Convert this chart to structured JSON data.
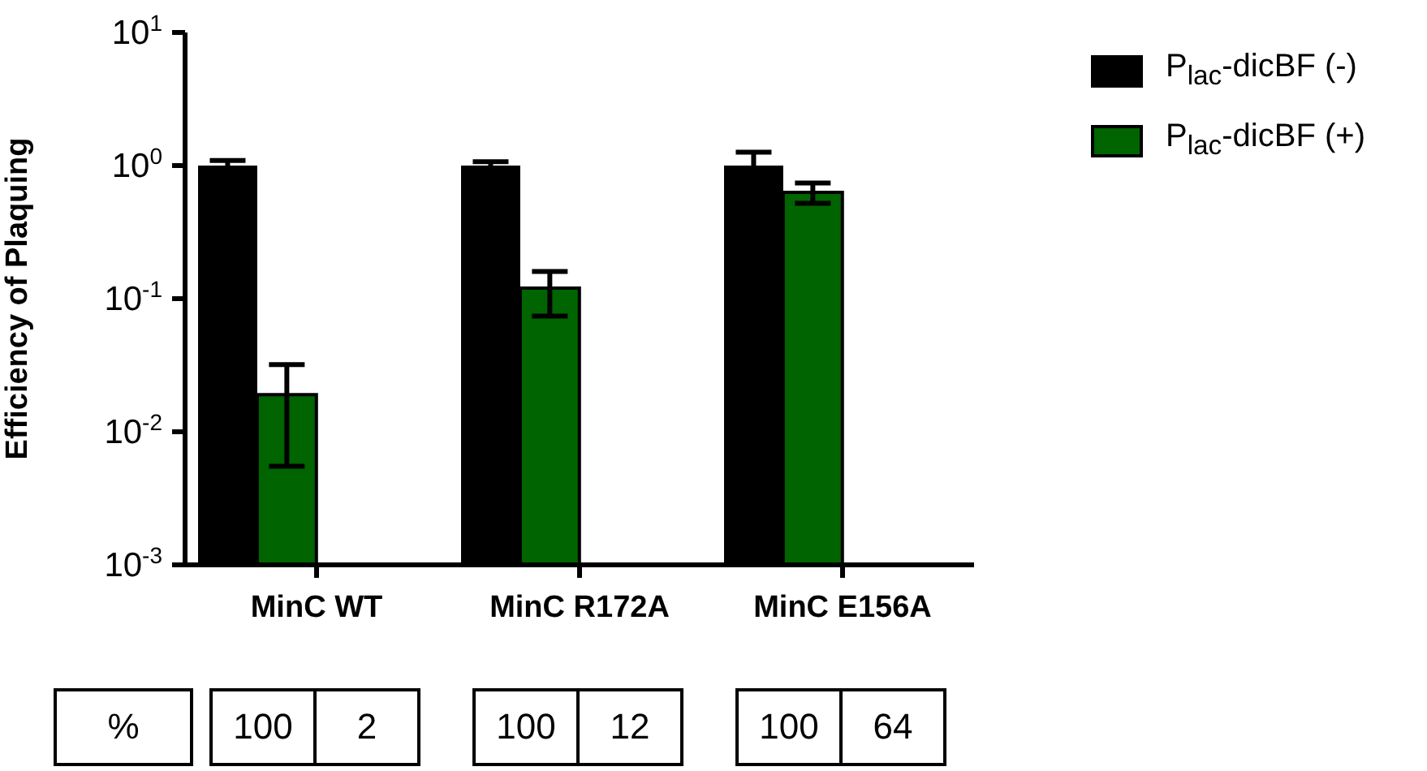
{
  "chart_data": {
    "type": "bar",
    "ylabel": "Efficiency of Plaquing",
    "categories": [
      "MinC WT",
      "MinC R172A",
      "MinC E156A"
    ],
    "series": [
      {
        "name": "P$_{lac}$-dicBF (-)",
        "color": "#000000",
        "values": [
          1,
          1,
          1
        ],
        "errors": [
          [
            1,
            1.09
          ],
          [
            1,
            1.07
          ],
          [
            1,
            1.26
          ]
        ]
      },
      {
        "name": "P$_{lac}$-dicBF (+)",
        "color": "#006400",
        "values": [
          0.019,
          0.12,
          0.63
        ],
        "errors": [
          [
            0.0055,
            0.032
          ],
          [
            0.074,
            0.16
          ],
          [
            0.52,
            0.74
          ]
        ]
      }
    ],
    "log": "y",
    "ylim": [
      0.001,
      10
    ],
    "yticks": [
      {
        "value": 0.001,
        "label": "10$^{-3}$"
      },
      {
        "value": 0.01,
        "label": "10$^{-2}$"
      },
      {
        "value": 0.1,
        "label": "10$^{-1}$"
      },
      {
        "value": 1,
        "label": "10$^{0}$"
      },
      {
        "value": 10,
        "label": "10$^{1}$"
      }
    ],
    "legend": "top right",
    "annotations": [
      "%",
      "100",
      "2",
      "100",
      "12",
      "100",
      "64"
    ]
  }
}
